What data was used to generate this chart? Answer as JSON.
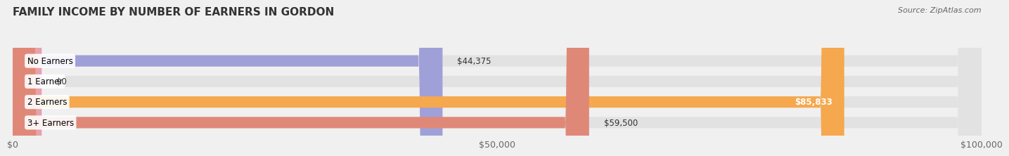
{
  "title": "FAMILY INCOME BY NUMBER OF EARNERS IN GORDON",
  "source": "Source: ZipAtlas.com",
  "categories": [
    "No Earners",
    "1 Earner",
    "2 Earners",
    "3+ Earners"
  ],
  "values": [
    44375,
    0,
    85833,
    59500
  ],
  "value_labels": [
    "$44,375",
    "$0",
    "$85,833",
    "$59,500"
  ],
  "bar_colors": [
    "#a0a0d8",
    "#e8a0b0",
    "#f5a84e",
    "#e08878"
  ],
  "xlim": [
    0,
    100000
  ],
  "xticks": [
    0,
    50000,
    100000
  ],
  "xtick_labels": [
    "$0",
    "$50,000",
    "$100,000"
  ],
  "background_color": "#f0f0f0",
  "bar_bg_color": "#e2e2e2",
  "title_fontsize": 11,
  "tick_fontsize": 9,
  "bar_label_fontsize": 8.5,
  "category_label_fontsize": 8.5,
  "bar_height": 0.55,
  "fig_width": 14.06,
  "fig_height": 2.33
}
